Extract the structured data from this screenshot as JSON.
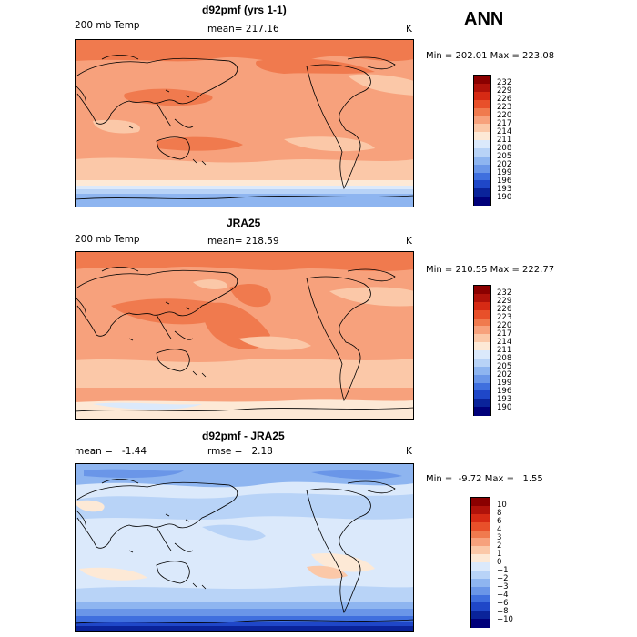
{
  "season": "ANN",
  "panels": [
    {
      "title": "d92pmf (yrs 1-1)",
      "left_label": "200 mb Temp",
      "center_label": "mean= 217.16",
      "units": "K",
      "minmax": "Min = 202.01 Max = 223.08"
    },
    {
      "title": "JRA25",
      "left_label": "200 mb Temp",
      "center_label": "mean= 218.59",
      "units": "K",
      "minmax": "Min = 210.55 Max = 222.77"
    },
    {
      "title": "d92pmf - JRA25",
      "left_label": "mean =   -1.44",
      "center_label": "rmse =   2.18",
      "units": "K",
      "minmax": "Min =  -9.72 Max =   1.55"
    }
  ],
  "colorbar_abs": {
    "labels": [
      "232",
      "229",
      "226",
      "223",
      "220",
      "217",
      "214",
      "211",
      "208",
      "205",
      "202",
      "199",
      "196",
      "193",
      "190"
    ],
    "colors": [
      "#8b0000",
      "#b0120a",
      "#d62a14",
      "#e8502a",
      "#f07a4e",
      "#f7a17c",
      "#fbc8a8",
      "#fde9d6",
      "#dbe9fb",
      "#b8d3f7",
      "#8eb5f0",
      "#6a96e8",
      "#3f6fde",
      "#1f47c8",
      "#0a239a",
      "#00007a"
    ]
  },
  "colorbar_diff": {
    "labels": [
      "10",
      "8",
      "6",
      "4",
      "3",
      "2",
      "1",
      "0",
      "−1",
      "−2",
      "−3",
      "−4",
      "−6",
      "−8",
      "−10"
    ],
    "colors": [
      "#8b0000",
      "#b0120a",
      "#d62a14",
      "#e8502a",
      "#f07a4e",
      "#f7a17c",
      "#fbc8a8",
      "#fde9d6",
      "#dbe9fb",
      "#b8d3f7",
      "#8eb5f0",
      "#6a96e8",
      "#3f6fde",
      "#1f47c8",
      "#0a239a",
      "#00007a"
    ]
  },
  "chart_data": [
    {
      "type": "heatmap",
      "title": "d92pmf (yrs 1-1)",
      "variable": "200 mb Temp",
      "units": "K",
      "mean": 217.16,
      "min": 202.01,
      "max": 223.08,
      "contour_levels": [
        190,
        193,
        196,
        199,
        202,
        205,
        208,
        211,
        214,
        217,
        220,
        223,
        226,
        229,
        232
      ],
      "projection": "cylindrical equidistant, Pacific-centered"
    },
    {
      "type": "heatmap",
      "title": "JRA25",
      "variable": "200 mb Temp",
      "units": "K",
      "mean": 218.59,
      "min": 210.55,
      "max": 222.77,
      "contour_levels": [
        190,
        193,
        196,
        199,
        202,
        205,
        208,
        211,
        214,
        217,
        220,
        223,
        226,
        229,
        232
      ],
      "projection": "cylindrical equidistant, Pacific-centered"
    },
    {
      "type": "heatmap",
      "title": "d92pmf - JRA25",
      "units": "K",
      "mean": -1.44,
      "rmse": 2.18,
      "min": -9.72,
      "max": 1.55,
      "contour_levels": [
        -10,
        -8,
        -6,
        -4,
        -3,
        -2,
        -1,
        0,
        1,
        2,
        3,
        4,
        6,
        8,
        10
      ],
      "projection": "cylindrical equidistant, Pacific-centered"
    }
  ]
}
